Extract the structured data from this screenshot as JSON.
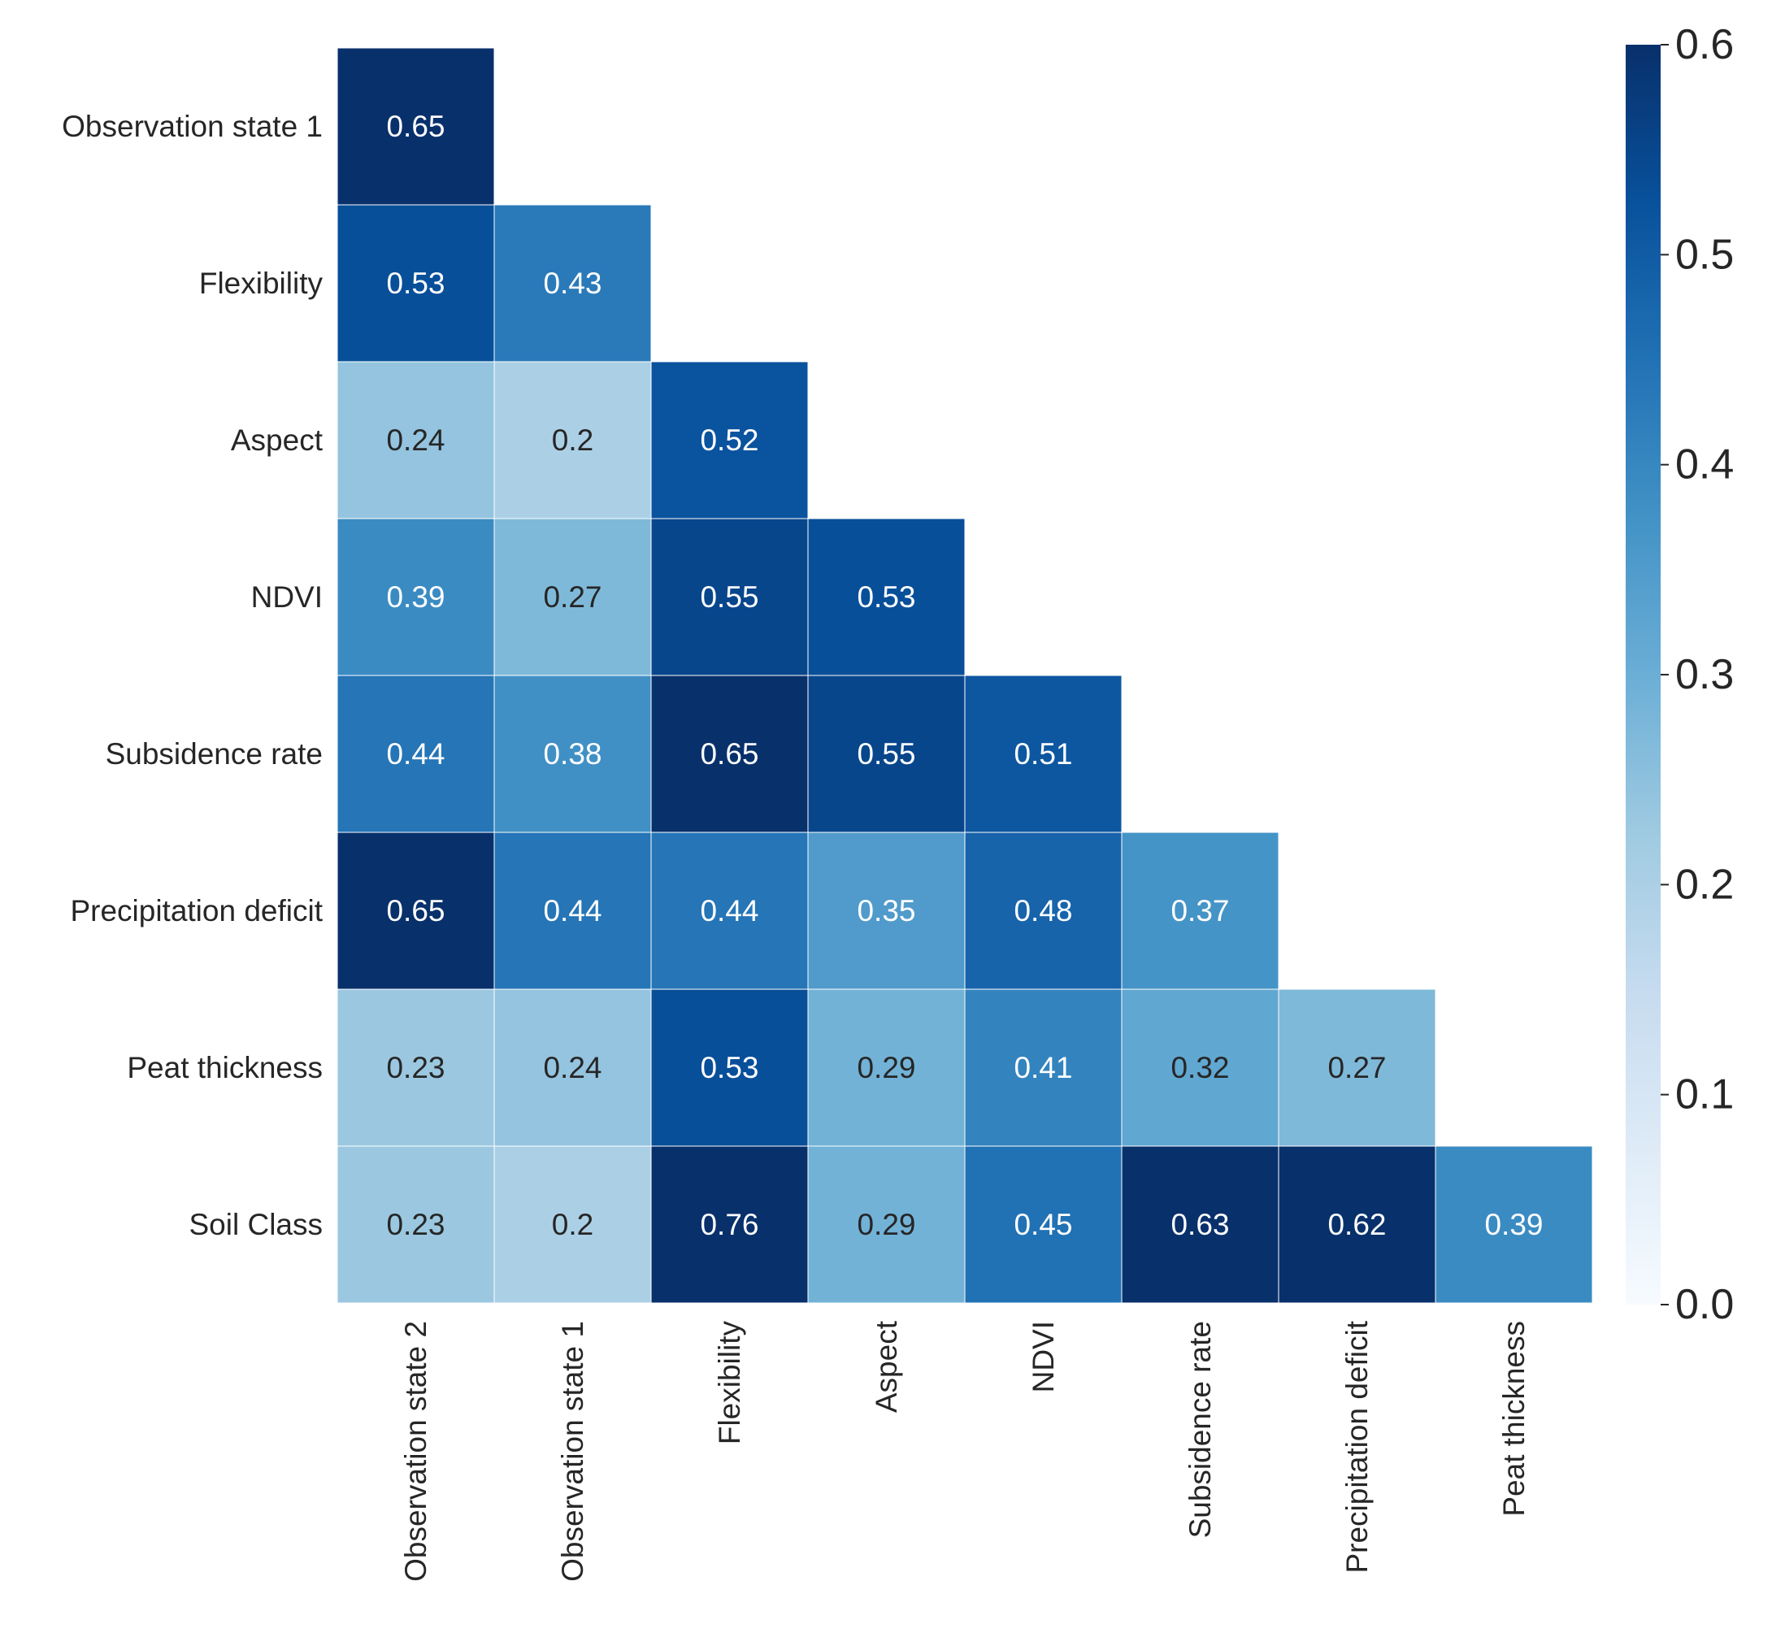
{
  "chart_data": {
    "type": "heatmap",
    "title": "",
    "xlabel": "",
    "ylabel": "",
    "row_labels": [
      "Observation state 1",
      "Flexibility",
      "Aspect",
      "NDVI",
      "Subsidence rate",
      "Precipitation deficit",
      "Peat thickness",
      "Soil Class"
    ],
    "col_labels": [
      "Observation state 2",
      "Observation state 1",
      "Flexibility",
      "Aspect",
      "NDVI",
      "Subsidence rate",
      "Precipitation deficit",
      "Peat thickness"
    ],
    "mask": "upper triangle (row i shows columns 0..i)",
    "values": [
      [
        0.65
      ],
      [
        0.53,
        0.43
      ],
      [
        0.24,
        0.2,
        0.52
      ],
      [
        0.39,
        0.27,
        0.55,
        0.53
      ],
      [
        0.44,
        0.38,
        0.65,
        0.55,
        0.51
      ],
      [
        0.65,
        0.44,
        0.44,
        0.35,
        0.48,
        0.37
      ],
      [
        0.23,
        0.24,
        0.53,
        0.29,
        0.41,
        0.32,
        0.27
      ],
      [
        0.23,
        0.2,
        0.76,
        0.29,
        0.45,
        0.63,
        0.62,
        0.39
      ]
    ],
    "value_labels": [
      [
        "0.65"
      ],
      [
        "0.53",
        "0.43"
      ],
      [
        "0.24",
        "0.2",
        "0.52"
      ],
      [
        "0.39",
        "0.27",
        "0.55",
        "0.53"
      ],
      [
        "0.44",
        "0.38",
        "0.65",
        "0.55",
        "0.51"
      ],
      [
        "0.65",
        "0.44",
        "0.44",
        "0.35",
        "0.48",
        "0.37"
      ],
      [
        "0.23",
        "0.24",
        "0.53",
        "0.29",
        "0.41",
        "0.32",
        "0.27"
      ],
      [
        "0.23",
        "0.2",
        "0.76",
        "0.29",
        "0.45",
        "0.63",
        "0.62",
        "0.39"
      ]
    ],
    "colormap": "Blues",
    "vmin": 0.0,
    "vmax": 0.6,
    "colorbar_ticks": [
      "0.0",
      "0.1",
      "0.2",
      "0.3",
      "0.4",
      "0.5",
      "0.6"
    ],
    "colors": {
      "cmap_stops": [
        "#f7fbff",
        "#deebf7",
        "#c6dbef",
        "#9ecae1",
        "#6baed6",
        "#4292c6",
        "#2171b5",
        "#08519c",
        "#08306b"
      ],
      "cell_border": "#ffffff",
      "text_dark": "#262626",
      "text_light": "#ffffff",
      "axis_text": "#262626"
    }
  }
}
